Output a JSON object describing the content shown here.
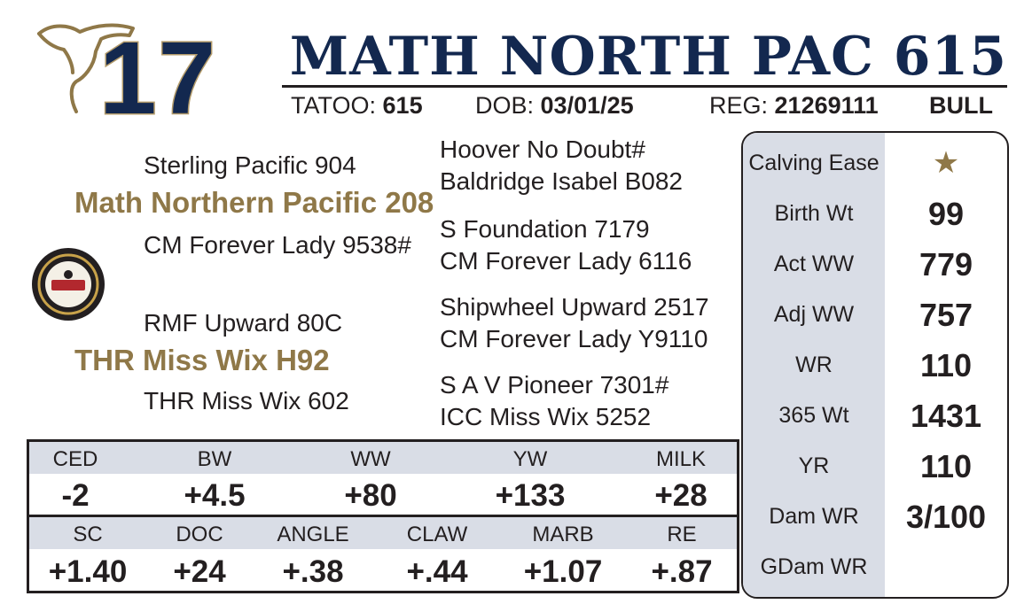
{
  "header": {
    "lot_number": "17",
    "title": "MATH NORTH PAC 615",
    "tattoo_label": "TATOO:",
    "tattoo_value": "615",
    "dob_label": "DOB:",
    "dob_value": "03/01/25",
    "reg_label": "REG:",
    "reg_value": "21269111",
    "sex": "BULL"
  },
  "icons": {
    "cow": "cow-head-icon",
    "badge": "certified-angus-beef-badge-icon",
    "star": "star-icon"
  },
  "colors": {
    "navy": "#13284f",
    "gold": "#8f7848",
    "panel_gray": "#d9dde6"
  },
  "pedigree": {
    "sire_sire": "Sterling Pacific 904",
    "sire": "Math Northern Pacific 208",
    "sire_dam": "CM Forever Lady 9538#",
    "dam_sire": "RMF Upward 80C",
    "dam": "THR Miss Wix H92",
    "dam_dam": "THR Miss Wix 602",
    "g1": "Hoover No Doubt#",
    "g2": "Baldridge Isabel B082",
    "g3": "S Foundation 7179",
    "g4": "CM Forever Lady 6116",
    "g5": "Shipwheel Upward 2517",
    "g6": "CM Forever Lady Y9110",
    "g7": "S A V Pioneer 7301#",
    "g8": "ICC Miss Wix 5252"
  },
  "performance": [
    {
      "label": "Calving Ease",
      "value": "★"
    },
    {
      "label": "Birth Wt",
      "value": "99"
    },
    {
      "label": "Act WW",
      "value": "779"
    },
    {
      "label": "Adj WW",
      "value": "757"
    },
    {
      "label": "WR",
      "value": "110"
    },
    {
      "label": "365 Wt",
      "value": "1431"
    },
    {
      "label": "YR",
      "value": "110"
    },
    {
      "label": "Dam WR",
      "value": "3/100"
    },
    {
      "label": "GDam WR",
      "value": ""
    }
  ],
  "epd_row1": [
    {
      "label": "CED",
      "value": "-2"
    },
    {
      "label": "BW",
      "value": "+4.5"
    },
    {
      "label": "WW",
      "value": "+80"
    },
    {
      "label": "YW",
      "value": "+133"
    },
    {
      "label": "MILK",
      "value": "+28"
    }
  ],
  "epd_row2": [
    {
      "label": "SC",
      "value": "+1.40"
    },
    {
      "label": "DOC",
      "value": "+24"
    },
    {
      "label": "ANGLE",
      "value": "+.38"
    },
    {
      "label": "CLAW",
      "value": "+.44"
    },
    {
      "label": "MARB",
      "value": "+1.07"
    },
    {
      "label": "RE",
      "value": "+.87"
    }
  ]
}
